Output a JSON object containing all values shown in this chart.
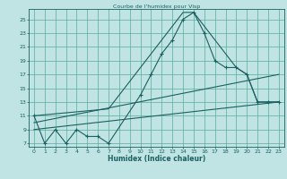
{
  "title": "Courbe de l'humidex pour Visp",
  "xlabel": "Humidex (Indice chaleur)",
  "bg_color": "#c0e4e4",
  "grid_color": "#5aaa9a",
  "line_color": "#1a6060",
  "xlim": [
    -0.5,
    23.5
  ],
  "ylim": [
    6.5,
    26.5
  ],
  "yticks": [
    7,
    9,
    11,
    13,
    15,
    17,
    19,
    21,
    23,
    25
  ],
  "xticks": [
    0,
    1,
    2,
    3,
    4,
    5,
    6,
    7,
    8,
    9,
    10,
    11,
    12,
    13,
    14,
    15,
    16,
    17,
    18,
    19,
    20,
    21,
    22,
    23
  ],
  "line1_x": [
    0,
    1,
    2,
    3,
    4,
    5,
    6,
    7,
    10,
    11,
    12,
    13,
    14,
    15,
    16,
    17,
    18,
    19,
    20,
    21,
    22,
    23
  ],
  "line1_y": [
    11,
    7,
    9,
    7,
    9,
    8,
    8,
    7,
    14,
    17,
    20,
    22,
    25,
    26,
    23,
    19,
    18,
    18,
    17,
    13,
    13,
    13
  ],
  "line2_x": [
    0,
    7,
    14,
    15,
    19,
    20,
    21,
    22,
    23
  ],
  "line2_y": [
    11,
    12,
    26,
    26,
    18,
    17,
    13,
    13,
    13
  ],
  "line3_x": [
    0,
    23
  ],
  "line3_y": [
    9,
    13
  ],
  "line4_x": [
    0,
    23
  ],
  "line4_y": [
    10,
    17
  ]
}
